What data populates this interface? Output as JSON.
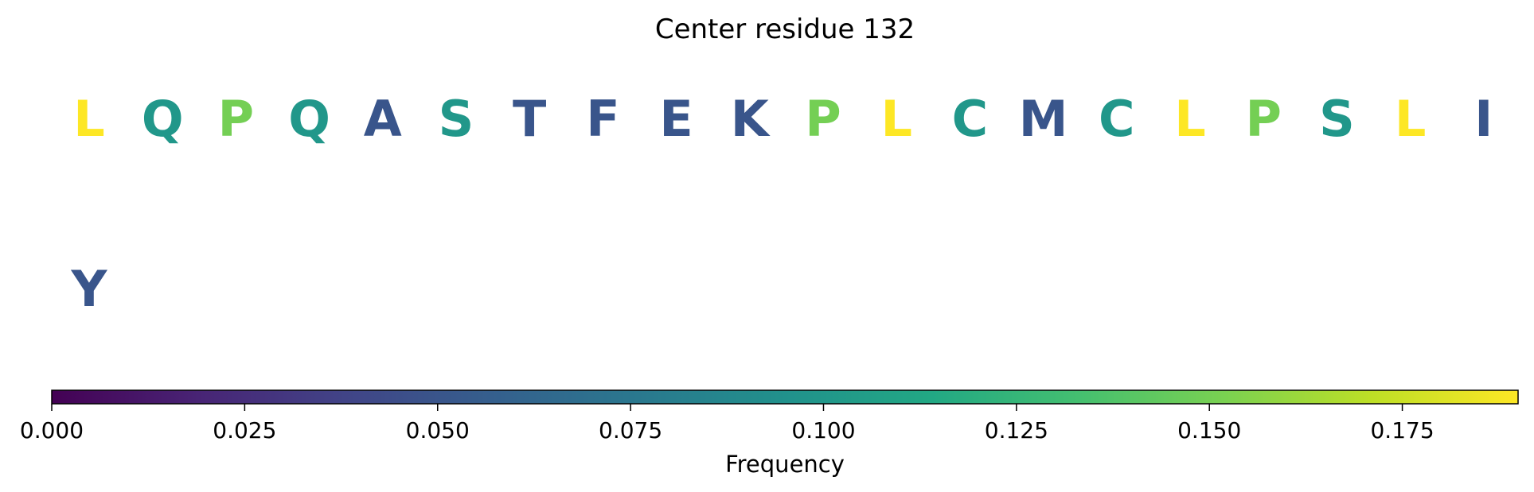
{
  "chart_data": {
    "type": "heatmap",
    "title": "Center residue 132",
    "rows": [
      {
        "letters": [
          "L",
          "Q",
          "P",
          "Q",
          "A",
          "S",
          "T",
          "F",
          "E",
          "K",
          "P",
          "L",
          "C",
          "M",
          "C",
          "L",
          "P",
          "S",
          "L",
          "I"
        ],
        "values": [
          0.19,
          0.1,
          0.15,
          0.1,
          0.05,
          0.1,
          0.05,
          0.05,
          0.05,
          0.05,
          0.15,
          0.19,
          0.1,
          0.05,
          0.1,
          0.19,
          0.15,
          0.1,
          0.19,
          0.05
        ]
      },
      {
        "letters": [
          "Y"
        ],
        "values": [
          0.05
        ]
      }
    ],
    "colorbar": {
      "label": "Frequency",
      "colormap": "viridis",
      "range": [
        0,
        0.19
      ],
      "ticks": [
        0.0,
        0.025,
        0.05,
        0.075,
        0.1,
        0.125,
        0.15,
        0.175
      ],
      "tick_labels": [
        "0.000",
        "0.025",
        "0.050",
        "0.075",
        "0.100",
        "0.125",
        "0.150",
        "0.175"
      ],
      "placement": "bottom"
    }
  }
}
